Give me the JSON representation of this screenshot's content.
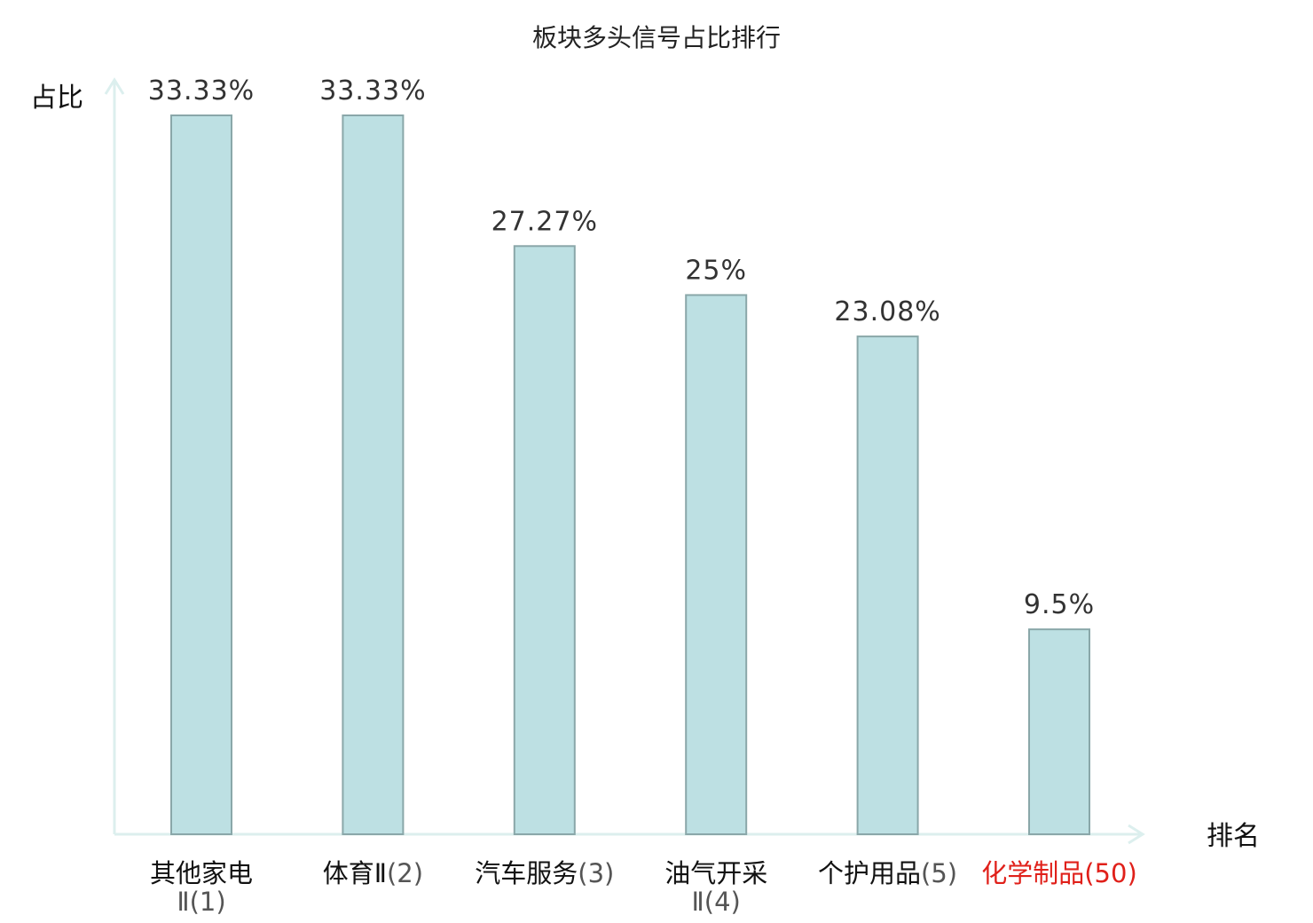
{
  "chart_data": {
    "type": "bar",
    "title": "板块多头信号占比排行",
    "ylabel": "占比",
    "xlabel": "排名",
    "ylim": [
      0,
      36
    ],
    "grid": false,
    "categories": [
      {
        "name": "其他家电",
        "rank": "Ⅱ(1)",
        "highlight": false
      },
      {
        "name": "体育Ⅱ",
        "rank": "(2)",
        "highlight": false
      },
      {
        "name": "汽车服务",
        "rank": "(3)",
        "highlight": false
      },
      {
        "name": "油气开采",
        "rank": "Ⅱ(4)",
        "highlight": false
      },
      {
        "name": "个护用品",
        "rank": "(5)",
        "highlight": false
      },
      {
        "name": "化学制品",
        "rank": "(50)",
        "highlight": true
      }
    ],
    "values": [
      33.33,
      33.33,
      27.27,
      25,
      23.08,
      9.5
    ],
    "value_labels": [
      "33.33%",
      "33.33%",
      "27.27%",
      "25%",
      "23.08%",
      "9.5%"
    ]
  },
  "colors": {
    "bar_fill": "#bde0e3",
    "bar_stroke": "#8aa7a9",
    "axis": "#dcefee",
    "label_text": "#222222",
    "name_text": "#111111",
    "rank_text": "#555555",
    "highlight_text": "#e0201a"
  }
}
